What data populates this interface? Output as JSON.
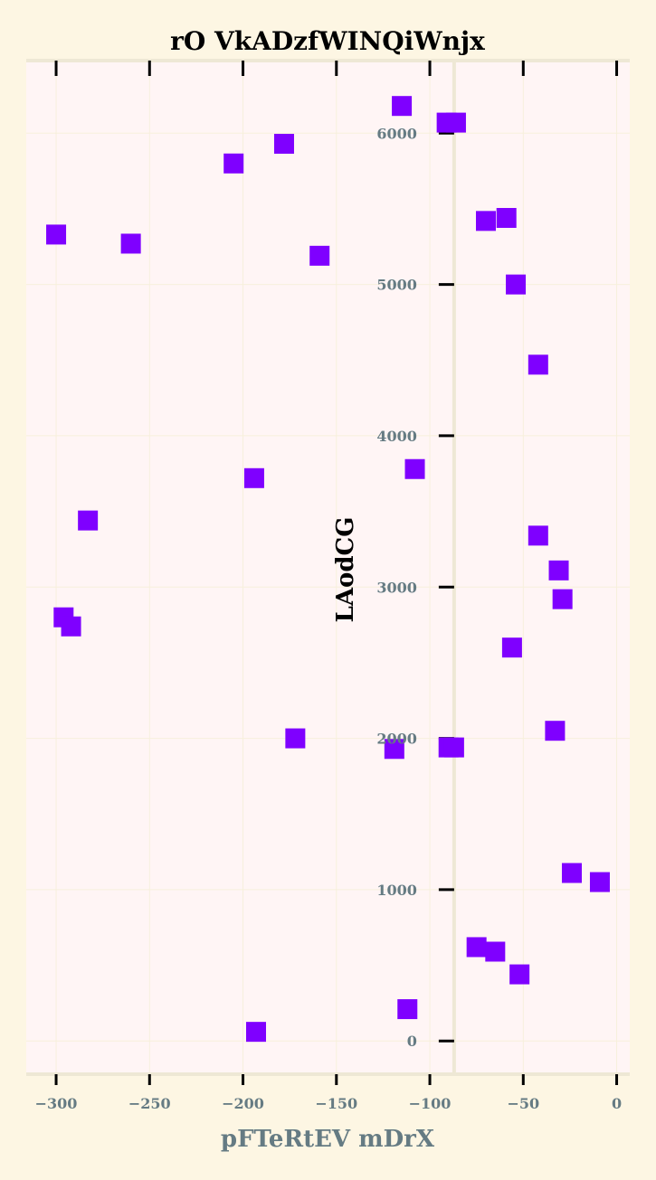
{
  "chart_data": {
    "type": "scatter",
    "title": "rO VkADzfWINQiWnjx",
    "xlabel": "pFTeRtEV mDrX",
    "ylabel": "LAodCG",
    "xlim": [
      -316,
      7
    ],
    "ylim": [
      -220,
      6480
    ],
    "x_ticks": [
      -300,
      -250,
      -200,
      -150,
      -100,
      -50,
      0
    ],
    "x_tick_labels": [
      "−300",
      "−250",
      "−200",
      "−150",
      "−100",
      "−50",
      "0"
    ],
    "y_ticks": [
      0,
      1000,
      2000,
      3000,
      4000,
      5000,
      6000
    ],
    "y_tick_labels": [
      "0",
      "1000",
      "2000",
      "3000",
      "4000",
      "5000",
      "6000"
    ],
    "grid": true,
    "spine_x": -87,
    "marker": "square",
    "color": "#7f00ff",
    "points": [
      {
        "x": -115,
        "y": 6180
      },
      {
        "x": -91,
        "y": 6070
      },
      {
        "x": -86,
        "y": 6070
      },
      {
        "x": -178,
        "y": 5930
      },
      {
        "x": -205,
        "y": 5800
      },
      {
        "x": -59,
        "y": 5440
      },
      {
        "x": -70,
        "y": 5420
      },
      {
        "x": -300,
        "y": 5330
      },
      {
        "x": -260,
        "y": 5270
      },
      {
        "x": -159,
        "y": 5190
      },
      {
        "x": -54,
        "y": 5000
      },
      {
        "x": -42,
        "y": 4470
      },
      {
        "x": -108,
        "y": 3780
      },
      {
        "x": -194,
        "y": 3720
      },
      {
        "x": -283,
        "y": 3440
      },
      {
        "x": -42,
        "y": 3340
      },
      {
        "x": -31,
        "y": 3110
      },
      {
        "x": -29,
        "y": 2920
      },
      {
        "x": -296,
        "y": 2800
      },
      {
        "x": -292,
        "y": 2740
      },
      {
        "x": -56,
        "y": 2600
      },
      {
        "x": -33,
        "y": 2050
      },
      {
        "x": -172,
        "y": 2000
      },
      {
        "x": -119,
        "y": 1930
      },
      {
        "x": -90,
        "y": 1940
      },
      {
        "x": -87,
        "y": 1940
      },
      {
        "x": -24,
        "y": 1110
      },
      {
        "x": -9,
        "y": 1050
      },
      {
        "x": -75,
        "y": 620
      },
      {
        "x": -65,
        "y": 590
      },
      {
        "x": -52,
        "y": 440
      },
      {
        "x": -112,
        "y": 210
      },
      {
        "x": -193,
        "y": 60
      }
    ]
  }
}
